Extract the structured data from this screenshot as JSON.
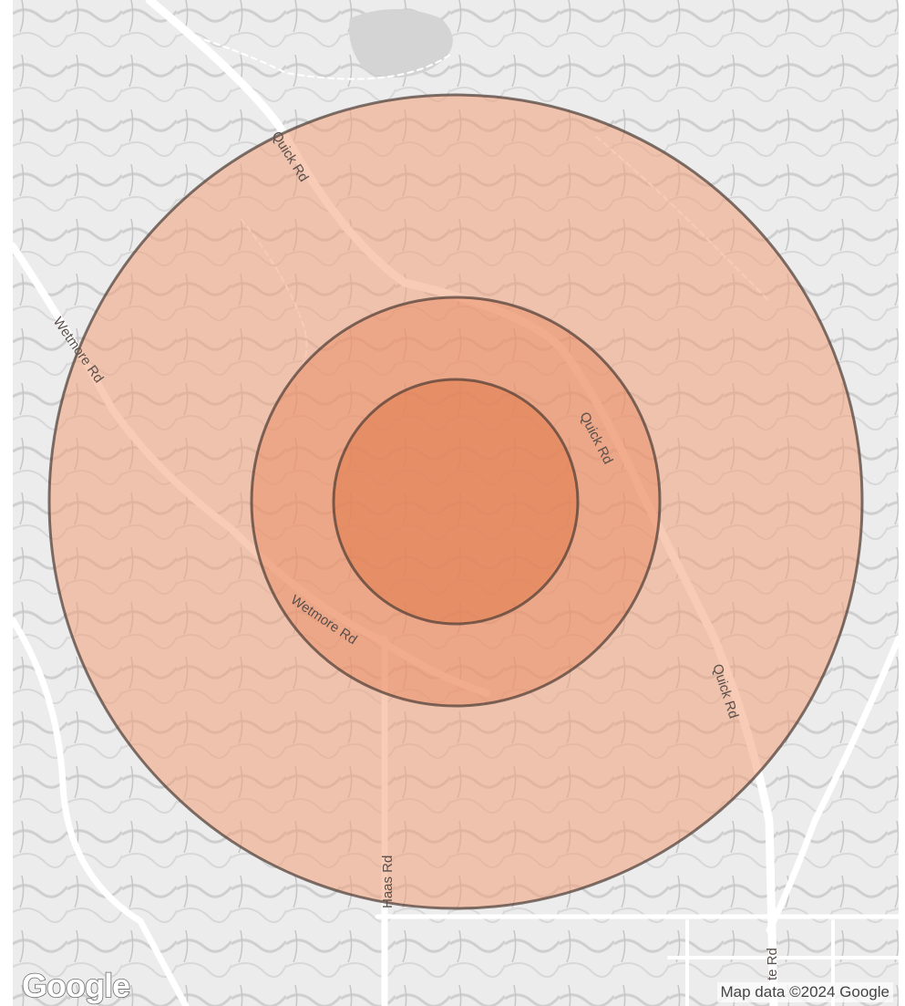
{
  "map": {
    "roads": {
      "quick_rd_north": "Quick Rd",
      "quick_rd_mid": "Quick Rd",
      "quick_rd_south": "Quick Rd",
      "wetmore_rd_west": "Wetmore Rd",
      "wetmore_rd_mid": "Wetmore Rd",
      "haas_rd": "Haas Rd",
      "state_rd": "te Rd"
    },
    "logo": "Google",
    "attribution": "Map data ©2024 Google",
    "buffer_colors": {
      "outer": "#f2a07a",
      "middle": "#e8845a",
      "inner": "#e07440",
      "stroke": "#4a3a33"
    }
  }
}
